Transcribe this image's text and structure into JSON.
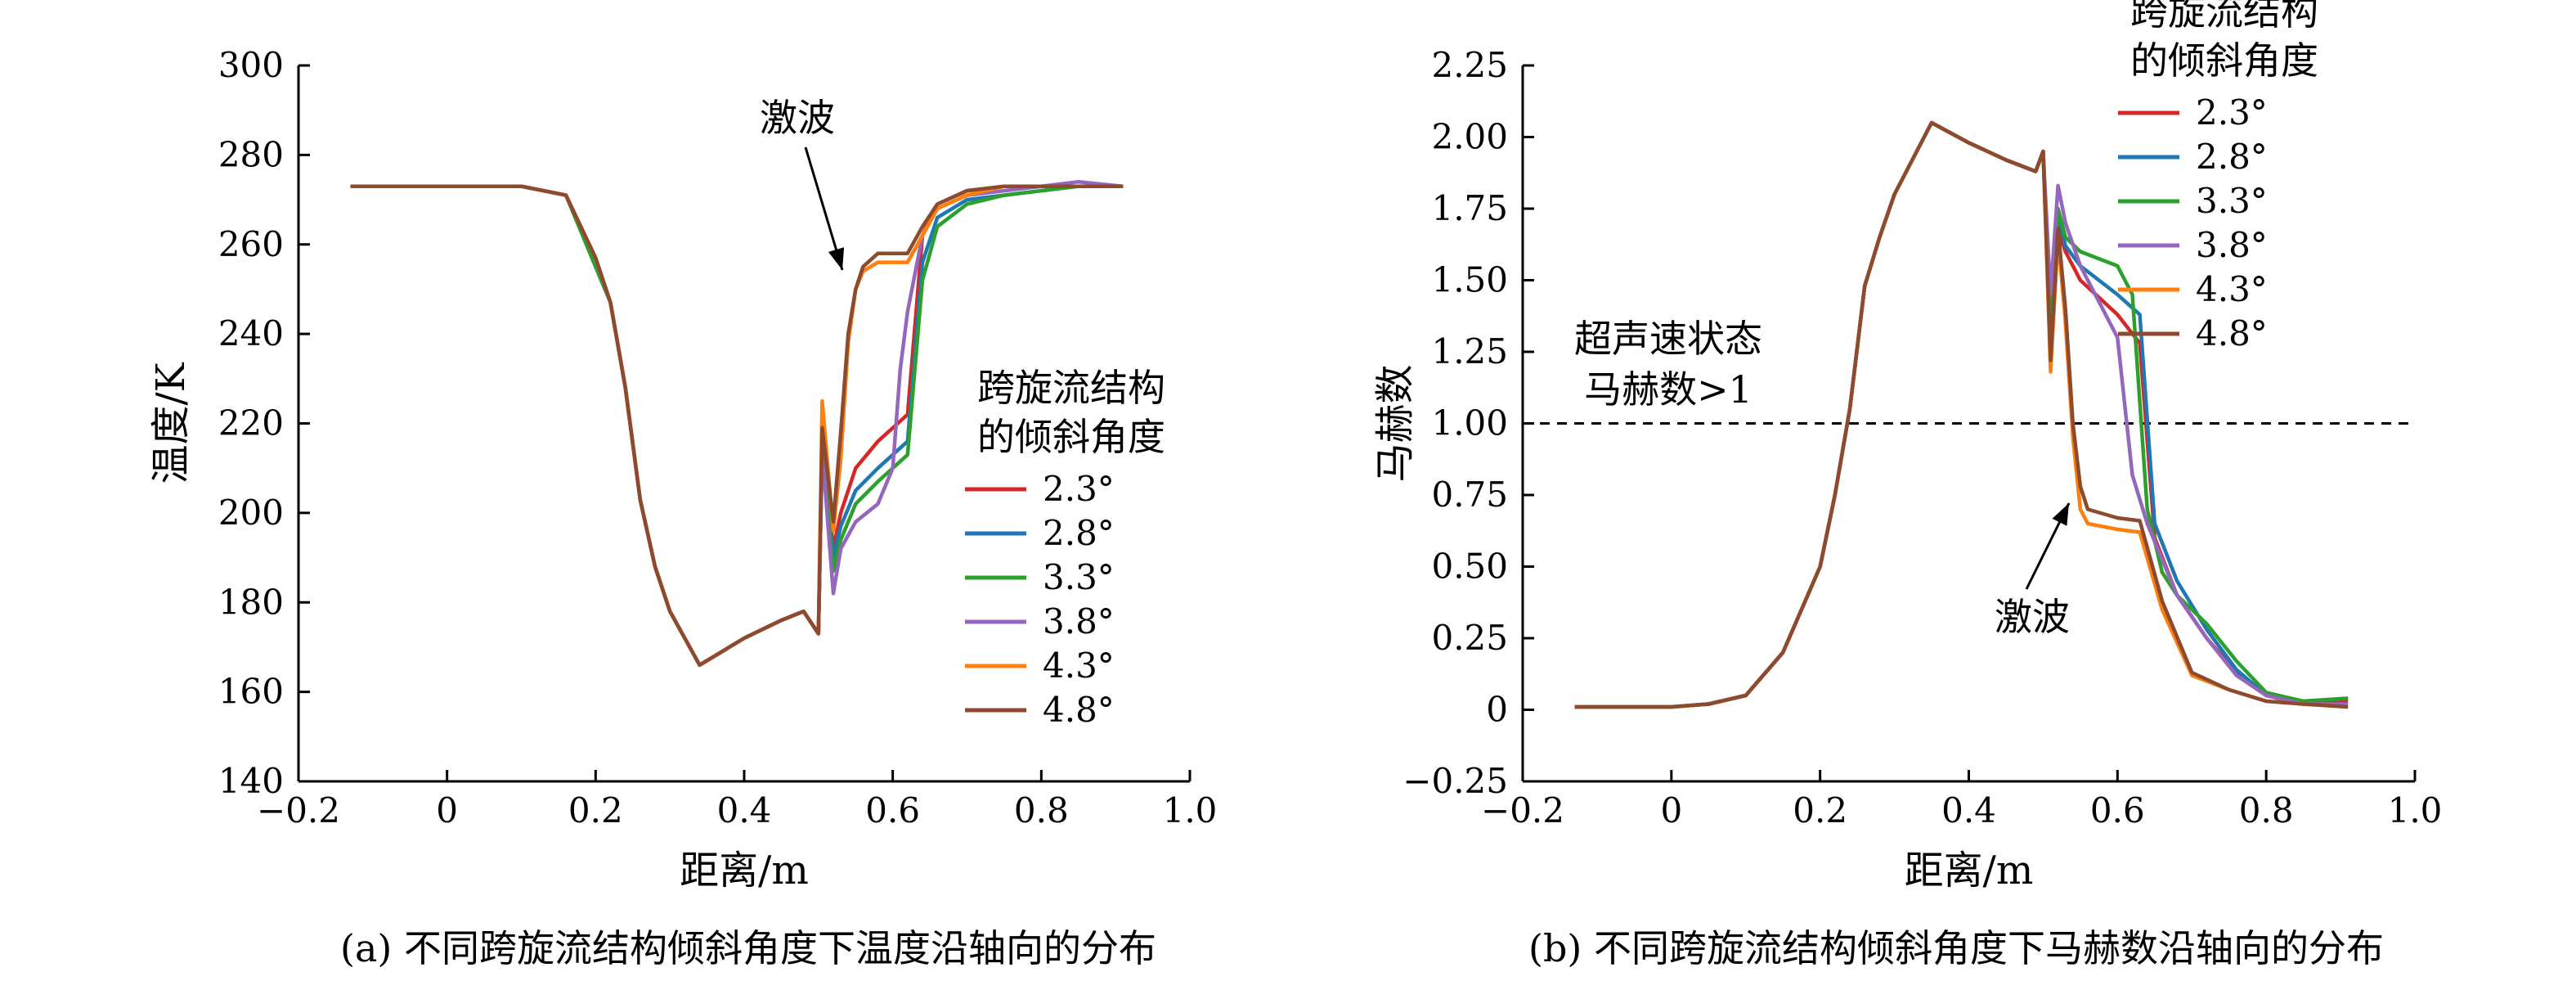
{
  "captions": {
    "a": "(a) 不同跨旋流结构倾斜角度下温度沿轴向的分布",
    "b": "(b) 不同跨旋流结构倾斜角度下马赫数沿轴向的分布"
  },
  "chart_data": [
    {
      "type": "line",
      "xlabel": "距离/m",
      "ylabel": "温度/K",
      "xlim": [
        -0.2,
        1.0
      ],
      "ylim": [
        140,
        300
      ],
      "xticks": [
        -0.2,
        0,
        0.2,
        0.4,
        0.6,
        0.8,
        1.0
      ],
      "xtick_labels": [
        "−0.2",
        "0",
        "0.2",
        "0.4",
        "0.6",
        "0.8",
        "1.0"
      ],
      "yticks": [
        140,
        160,
        180,
        200,
        220,
        240,
        260,
        280,
        300
      ],
      "ytick_labels": [
        "140",
        "160",
        "180",
        "200",
        "220",
        "240",
        "260",
        "280",
        "300"
      ],
      "legend_title": [
        "跨旋流结构",
        "的倾斜角度"
      ],
      "legend_position": "right",
      "annotations": [
        {
          "text": "激波",
          "x": 0.54,
          "y": 253
        }
      ],
      "series": [
        {
          "name": "2.3°",
          "color": "#d62728",
          "x": [
            -0.13,
            0.0,
            0.1,
            0.16,
            0.2,
            0.22,
            0.24,
            0.26,
            0.28,
            0.3,
            0.34,
            0.36,
            0.4,
            0.45,
            0.48,
            0.5,
            0.505,
            0.52,
            0.53,
            0.55,
            0.58,
            0.6,
            0.62,
            0.64,
            0.66,
            0.7,
            0.75,
            0.8,
            0.85,
            0.91
          ],
          "y": [
            273,
            273,
            273,
            271,
            257,
            247,
            228,
            203,
            188,
            178,
            166,
            168,
            172,
            176,
            178,
            173,
            217,
            192,
            200,
            210,
            216,
            219,
            222,
            262,
            269,
            272,
            273,
            273,
            273,
            273
          ]
        },
        {
          "name": "2.8°",
          "color": "#1f77b4",
          "x": [
            -0.13,
            0.0,
            0.1,
            0.16,
            0.2,
            0.22,
            0.24,
            0.26,
            0.28,
            0.3,
            0.34,
            0.36,
            0.4,
            0.45,
            0.48,
            0.5,
            0.505,
            0.52,
            0.53,
            0.55,
            0.58,
            0.6,
            0.62,
            0.64,
            0.66,
            0.7,
            0.75,
            0.8,
            0.85,
            0.91
          ],
          "y": [
            273,
            273,
            273,
            271,
            257,
            247,
            228,
            203,
            188,
            178,
            166,
            168,
            172,
            176,
            178,
            173,
            215,
            190,
            197,
            205,
            210,
            213,
            216,
            256,
            266,
            270,
            271,
            272,
            273,
            273
          ]
        },
        {
          "name": "3.3°",
          "color": "#2ca02c",
          "x": [
            -0.13,
            0.0,
            0.1,
            0.16,
            0.2,
            0.22,
            0.24,
            0.26,
            0.28,
            0.3,
            0.34,
            0.36,
            0.4,
            0.45,
            0.48,
            0.5,
            0.505,
            0.52,
            0.53,
            0.55,
            0.58,
            0.6,
            0.62,
            0.64,
            0.66,
            0.7,
            0.75,
            0.8,
            0.85,
            0.91
          ],
          "y": [
            273,
            273,
            273,
            271,
            255,
            247,
            228,
            203,
            188,
            178,
            166,
            168,
            172,
            176,
            178,
            173,
            215,
            187,
            194,
            202,
            207,
            210,
            213,
            252,
            264,
            269,
            271,
            272,
            273,
            273
          ]
        },
        {
          "name": "3.8°",
          "color": "#9467bd",
          "x": [
            -0.13,
            0.0,
            0.1,
            0.16,
            0.2,
            0.22,
            0.24,
            0.26,
            0.28,
            0.3,
            0.34,
            0.36,
            0.4,
            0.45,
            0.48,
            0.5,
            0.505,
            0.52,
            0.53,
            0.55,
            0.58,
            0.6,
            0.61,
            0.62,
            0.64,
            0.66,
            0.7,
            0.75,
            0.8,
            0.85,
            0.91
          ],
          "y": [
            273,
            273,
            273,
            271,
            257,
            247,
            228,
            203,
            188,
            178,
            166,
            168,
            172,
            176,
            178,
            173,
            214,
            182,
            192,
            198,
            202,
            210,
            232,
            245,
            262,
            268,
            271,
            272,
            273,
            274,
            273
          ]
        },
        {
          "name": "4.3°",
          "color": "#ff7f0e",
          "x": [
            -0.13,
            0.0,
            0.1,
            0.16,
            0.2,
            0.22,
            0.24,
            0.26,
            0.28,
            0.3,
            0.34,
            0.36,
            0.4,
            0.45,
            0.48,
            0.5,
            0.505,
            0.52,
            0.53,
            0.54,
            0.55,
            0.56,
            0.58,
            0.62,
            0.64,
            0.66,
            0.7,
            0.75,
            0.8,
            0.85,
            0.91
          ],
          "y": [
            273,
            273,
            273,
            271,
            257,
            247,
            228,
            203,
            188,
            178,
            166,
            168,
            172,
            176,
            178,
            173,
            225,
            196,
            212,
            238,
            250,
            254,
            256,
            256,
            262,
            268,
            271,
            273,
            273,
            273,
            273
          ]
        },
        {
          "name": "4.8°",
          "color": "#8c4a2f",
          "x": [
            -0.13,
            0.0,
            0.1,
            0.16,
            0.2,
            0.22,
            0.24,
            0.26,
            0.28,
            0.3,
            0.34,
            0.36,
            0.4,
            0.45,
            0.48,
            0.5,
            0.505,
            0.52,
            0.53,
            0.54,
            0.55,
            0.56,
            0.58,
            0.62,
            0.64,
            0.66,
            0.7,
            0.75,
            0.8,
            0.85,
            0.91
          ],
          "y": [
            273,
            273,
            273,
            271,
            257,
            247,
            228,
            203,
            188,
            178,
            166,
            168,
            172,
            176,
            178,
            173,
            219,
            198,
            218,
            240,
            250,
            255,
            258,
            258,
            264,
            269,
            272,
            273,
            273,
            273,
            273
          ]
        }
      ]
    },
    {
      "type": "line",
      "xlabel": "距离/m",
      "ylabel": "马赫数",
      "xlim": [
        -0.2,
        1.0
      ],
      "ylim": [
        -0.25,
        2.25
      ],
      "xticks": [
        -0.2,
        0,
        0.2,
        0.4,
        0.6,
        0.8,
        1.0
      ],
      "xtick_labels": [
        "−0.2",
        "0",
        "0.2",
        "0.4",
        "0.6",
        "0.8",
        "1.0"
      ],
      "yticks": [
        -0.25,
        0,
        0.25,
        0.5,
        0.75,
        1.0,
        1.25,
        1.5,
        1.75,
        2.0,
        2.25
      ],
      "ytick_labels": [
        "−0.25",
        "0",
        "0.25",
        "0.50",
        "0.75",
        "1.00",
        "1.25",
        "1.50",
        "1.75",
        "2.00",
        "2.25"
      ],
      "legend_title": [
        "跨旋流结构",
        "的倾斜角度"
      ],
      "legend_position": "top-right",
      "reference_line": {
        "y": 1.0,
        "style": "dashed"
      },
      "annotations": [
        {
          "text": "超声速状态",
          "x": 0.0,
          "y": 1.33
        },
        {
          "text": "马赫数>1",
          "x": 0.0,
          "y": 1.15
        },
        {
          "text": "激波",
          "x": 0.47,
          "y": 0.38
        }
      ],
      "series": [
        {
          "name": "2.3°",
          "color": "#d62728",
          "x": [
            -0.13,
            0.0,
            0.05,
            0.1,
            0.15,
            0.2,
            0.22,
            0.24,
            0.26,
            0.28,
            0.3,
            0.35,
            0.4,
            0.45,
            0.49,
            0.5,
            0.51,
            0.52,
            0.53,
            0.55,
            0.6,
            0.63,
            0.65,
            0.68,
            0.72,
            0.76,
            0.8,
            0.85,
            0.91
          ],
          "y": [
            0.01,
            0.01,
            0.02,
            0.05,
            0.2,
            0.5,
            0.75,
            1.05,
            1.48,
            1.65,
            1.8,
            2.05,
            1.98,
            1.92,
            1.88,
            1.95,
            1.28,
            1.68,
            1.6,
            1.5,
            1.38,
            1.28,
            0.6,
            0.4,
            0.25,
            0.13,
            0.05,
            0.02,
            0.03
          ]
        },
        {
          "name": "2.8°",
          "color": "#1f77b4",
          "x": [
            -0.13,
            0.0,
            0.05,
            0.1,
            0.15,
            0.2,
            0.22,
            0.24,
            0.26,
            0.28,
            0.3,
            0.35,
            0.4,
            0.45,
            0.49,
            0.5,
            0.51,
            0.52,
            0.53,
            0.55,
            0.6,
            0.63,
            0.65,
            0.68,
            0.72,
            0.76,
            0.8,
            0.85,
            0.91
          ],
          "y": [
            0.01,
            0.01,
            0.02,
            0.05,
            0.2,
            0.5,
            0.75,
            1.05,
            1.48,
            1.65,
            1.8,
            2.05,
            1.98,
            1.92,
            1.88,
            1.95,
            1.3,
            1.73,
            1.62,
            1.55,
            1.45,
            1.38,
            0.65,
            0.45,
            0.28,
            0.14,
            0.05,
            0.03,
            0.04
          ]
        },
        {
          "name": "3.3°",
          "color": "#2ca02c",
          "x": [
            -0.13,
            0.0,
            0.05,
            0.1,
            0.15,
            0.2,
            0.22,
            0.24,
            0.26,
            0.28,
            0.3,
            0.35,
            0.4,
            0.45,
            0.49,
            0.5,
            0.51,
            0.52,
            0.53,
            0.55,
            0.6,
            0.62,
            0.64,
            0.66,
            0.68,
            0.72,
            0.76,
            0.8,
            0.85,
            0.91
          ],
          "y": [
            0.01,
            0.01,
            0.02,
            0.05,
            0.2,
            0.5,
            0.75,
            1.05,
            1.48,
            1.65,
            1.8,
            2.05,
            1.98,
            1.92,
            1.88,
            1.95,
            1.35,
            1.75,
            1.65,
            1.6,
            1.55,
            1.45,
            0.7,
            0.48,
            0.4,
            0.3,
            0.17,
            0.06,
            0.03,
            0.04
          ]
        },
        {
          "name": "3.8°",
          "color": "#9467bd",
          "x": [
            -0.13,
            0.0,
            0.05,
            0.1,
            0.15,
            0.2,
            0.22,
            0.24,
            0.26,
            0.28,
            0.3,
            0.35,
            0.4,
            0.45,
            0.49,
            0.5,
            0.51,
            0.52,
            0.53,
            0.55,
            0.58,
            0.6,
            0.62,
            0.64,
            0.68,
            0.72,
            0.76,
            0.8,
            0.85,
            0.91
          ],
          "y": [
            0.01,
            0.01,
            0.02,
            0.05,
            0.2,
            0.5,
            0.75,
            1.05,
            1.48,
            1.65,
            1.8,
            2.05,
            1.98,
            1.92,
            1.88,
            1.95,
            1.45,
            1.83,
            1.7,
            1.55,
            1.4,
            1.3,
            0.82,
            0.65,
            0.4,
            0.25,
            0.12,
            0.05,
            0.02,
            0.02
          ]
        },
        {
          "name": "4.3°",
          "color": "#ff7f0e",
          "x": [
            -0.13,
            0.0,
            0.05,
            0.1,
            0.15,
            0.2,
            0.22,
            0.24,
            0.26,
            0.28,
            0.3,
            0.35,
            0.4,
            0.45,
            0.49,
            0.5,
            0.51,
            0.52,
            0.53,
            0.54,
            0.55,
            0.56,
            0.6,
            0.63,
            0.66,
            0.7,
            0.75,
            0.8,
            0.85,
            0.91
          ],
          "y": [
            0.01,
            0.01,
            0.02,
            0.05,
            0.2,
            0.5,
            0.75,
            1.05,
            1.48,
            1.65,
            1.8,
            2.05,
            1.98,
            1.92,
            1.88,
            1.95,
            1.18,
            1.65,
            1.35,
            0.95,
            0.7,
            0.65,
            0.63,
            0.62,
            0.35,
            0.12,
            0.07,
            0.03,
            0.02,
            0.01
          ]
        },
        {
          "name": "4.8°",
          "color": "#8c4a2f",
          "x": [
            -0.13,
            0.0,
            0.05,
            0.1,
            0.15,
            0.2,
            0.22,
            0.24,
            0.26,
            0.28,
            0.3,
            0.35,
            0.4,
            0.45,
            0.49,
            0.5,
            0.51,
            0.52,
            0.53,
            0.54,
            0.55,
            0.56,
            0.6,
            0.63,
            0.66,
            0.7,
            0.75,
            0.8,
            0.85,
            0.91
          ],
          "y": [
            0.01,
            0.01,
            0.02,
            0.05,
            0.2,
            0.5,
            0.75,
            1.05,
            1.48,
            1.65,
            1.8,
            2.05,
            1.98,
            1.92,
            1.88,
            1.95,
            1.22,
            1.68,
            1.4,
            1.0,
            0.78,
            0.7,
            0.67,
            0.66,
            0.38,
            0.13,
            0.07,
            0.03,
            0.02,
            0.01
          ]
        }
      ]
    }
  ]
}
